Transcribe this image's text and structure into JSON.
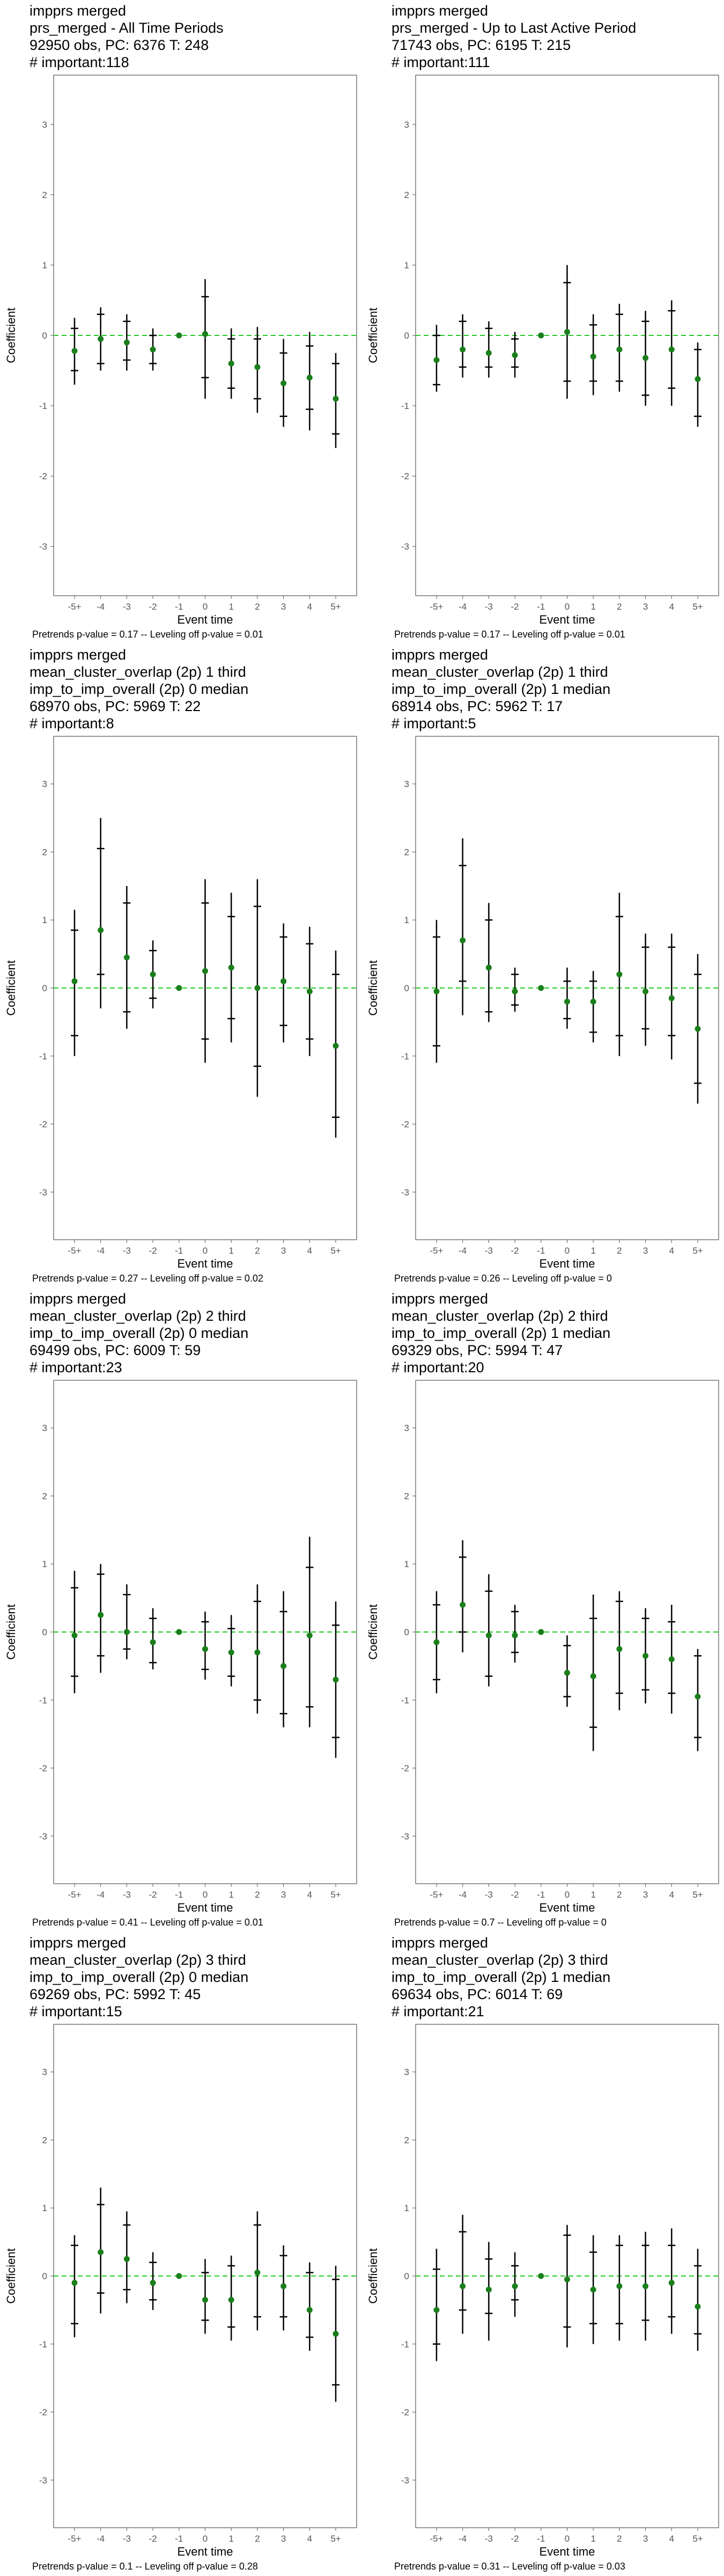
{
  "colors": {
    "zero_line": "#22cc22",
    "point": "#1a7f1a",
    "bar": "#000000",
    "frame": "#555555",
    "tick_text": "#555555"
  },
  "chart_data": [
    {
      "type": "scatter",
      "title_lines": [
        "impprs merged",
        "prs_merged - All Time Periods",
        "92950 obs, PC: 6376 T: 248",
        "# important:118"
      ],
      "caption": "Pretrends p-value = 0.17 -- Leveling off p-value = 0.01",
      "xlabel": "Event time",
      "ylabel": "Coefficient",
      "categories": [
        "-5+",
        "-4",
        "-3",
        "-2",
        "-1",
        "0",
        "1",
        "2",
        "3",
        "4",
        "5+"
      ],
      "y_ticks": [
        3,
        2,
        1,
        0,
        -1,
        -2,
        -3
      ],
      "ylim": [
        -3.7,
        3.7
      ],
      "points": [
        -0.22,
        -0.05,
        -0.1,
        -0.2,
        0.0,
        0.02,
        -0.4,
        -0.45,
        -0.68,
        -0.6,
        -0.9
      ],
      "ci_outer": [
        [
          -0.7,
          0.25
        ],
        [
          -0.5,
          0.4
        ],
        [
          -0.5,
          0.3
        ],
        [
          -0.5,
          0.1
        ],
        [
          0.0,
          0.0
        ],
        [
          -0.9,
          0.8
        ],
        [
          -0.9,
          0.1
        ],
        [
          -1.1,
          0.12
        ],
        [
          -1.3,
          -0.05
        ],
        [
          -1.35,
          0.05
        ],
        [
          -1.6,
          -0.25
        ]
      ],
      "ci_inner": [
        [
          -0.5,
          0.1
        ],
        [
          -0.4,
          0.3
        ],
        [
          -0.35,
          0.2
        ],
        [
          -0.4,
          0.0
        ],
        [
          0.0,
          0.0
        ],
        [
          -0.6,
          0.55
        ],
        [
          -0.75,
          -0.05
        ],
        [
          -0.9,
          -0.05
        ],
        [
          -1.15,
          -0.25
        ],
        [
          -1.05,
          -0.15
        ],
        [
          -1.4,
          -0.4
        ]
      ]
    },
    {
      "type": "scatter",
      "title_lines": [
        "impprs merged",
        "prs_merged - Up to Last Active Period",
        "71743 obs, PC: 6195 T: 215",
        "# important:111"
      ],
      "caption": "Pretrends p-value = 0.17 -- Leveling off p-value = 0.01",
      "xlabel": "Event time",
      "ylabel": "Coefficient",
      "categories": [
        "-5+",
        "-4",
        "-3",
        "-2",
        "-1",
        "0",
        "1",
        "2",
        "3",
        "4",
        "5+"
      ],
      "y_ticks": [
        3,
        2,
        1,
        0,
        -1,
        -2,
        -3
      ],
      "ylim": [
        -3.7,
        3.7
      ],
      "points": [
        -0.35,
        -0.2,
        -0.25,
        -0.28,
        0.0,
        0.05,
        -0.3,
        -0.2,
        -0.32,
        -0.2,
        -0.62
      ],
      "ci_outer": [
        [
          -0.8,
          0.15
        ],
        [
          -0.6,
          0.3
        ],
        [
          -0.6,
          0.2
        ],
        [
          -0.6,
          0.05
        ],
        [
          0.0,
          0.0
        ],
        [
          -0.9,
          1.0
        ],
        [
          -0.85,
          0.3
        ],
        [
          -0.8,
          0.45
        ],
        [
          -1.0,
          0.35
        ],
        [
          -1.0,
          0.5
        ],
        [
          -1.3,
          -0.1
        ]
      ],
      "ci_inner": [
        [
          -0.7,
          0.0
        ],
        [
          -0.45,
          0.2
        ],
        [
          -0.45,
          0.1
        ],
        [
          -0.45,
          -0.05
        ],
        [
          0.0,
          0.0
        ],
        [
          -0.65,
          0.75
        ],
        [
          -0.65,
          0.15
        ],
        [
          -0.65,
          0.3
        ],
        [
          -0.85,
          0.2
        ],
        [
          -0.75,
          0.35
        ],
        [
          -1.15,
          -0.2
        ]
      ]
    },
    {
      "type": "scatter",
      "title_lines": [
        "impprs merged",
        "mean_cluster_overlap (2p) 1 third",
        "imp_to_imp_overall (2p) 0 median",
        "68970 obs, PC: 5969 T: 22",
        "# important:8"
      ],
      "caption": "Pretrends p-value = 0.27 -- Leveling off p-value = 0.02",
      "xlabel": "Event time",
      "ylabel": "Coefficient",
      "categories": [
        "-5+",
        "-4",
        "-3",
        "-2",
        "-1",
        "0",
        "1",
        "2",
        "3",
        "4",
        "5+"
      ],
      "y_ticks": [
        3,
        2,
        1,
        0,
        -1,
        -2,
        -3
      ],
      "ylim": [
        -3.7,
        3.7
      ],
      "points": [
        0.1,
        0.85,
        0.45,
        0.2,
        0.0,
        0.25,
        0.3,
        0.0,
        0.1,
        -0.05,
        -0.85
      ],
      "ci_outer": [
        [
          -1.0,
          1.15
        ],
        [
          -0.3,
          2.5
        ],
        [
          -0.6,
          1.5
        ],
        [
          -0.3,
          0.7
        ],
        [
          0.0,
          0.0
        ],
        [
          -1.1,
          1.6
        ],
        [
          -0.8,
          1.4
        ],
        [
          -1.6,
          1.6
        ],
        [
          -0.8,
          0.95
        ],
        [
          -1.0,
          0.9
        ],
        [
          -2.2,
          0.55
        ]
      ],
      "ci_inner": [
        [
          -0.7,
          0.85
        ],
        [
          0.2,
          2.05
        ],
        [
          -0.35,
          1.25
        ],
        [
          -0.15,
          0.55
        ],
        [
          0.0,
          0.0
        ],
        [
          -0.75,
          1.25
        ],
        [
          -0.45,
          1.05
        ],
        [
          -1.15,
          1.2
        ],
        [
          -0.55,
          0.75
        ],
        [
          -0.75,
          0.65
        ],
        [
          -1.9,
          0.2
        ]
      ]
    },
    {
      "type": "scatter",
      "title_lines": [
        "impprs merged",
        "mean_cluster_overlap (2p) 1 third",
        "imp_to_imp_overall (2p) 1 median",
        "68914 obs, PC: 5962 T: 17",
        "# important:5"
      ],
      "caption": "Pretrends p-value = 0.26 -- Leveling off p-value = 0",
      "xlabel": "Event time",
      "ylabel": "Coefficient",
      "categories": [
        "-5+",
        "-4",
        "-3",
        "-2",
        "-1",
        "0",
        "1",
        "2",
        "3",
        "4",
        "5+"
      ],
      "y_ticks": [
        3,
        2,
        1,
        0,
        -1,
        -2,
        -3
      ],
      "ylim": [
        -3.7,
        3.7
      ],
      "points": [
        -0.05,
        0.7,
        0.3,
        -0.05,
        0.0,
        -0.2,
        -0.2,
        0.2,
        -0.05,
        -0.15,
        -0.6
      ],
      "ci_outer": [
        [
          -1.1,
          1.0
        ],
        [
          -0.4,
          2.2
        ],
        [
          -0.5,
          1.25
        ],
        [
          -0.35,
          0.3
        ],
        [
          0.0,
          0.0
        ],
        [
          -0.6,
          0.3
        ],
        [
          -0.8,
          0.25
        ],
        [
          -1.0,
          1.4
        ],
        [
          -0.85,
          0.8
        ],
        [
          -1.05,
          0.8
        ],
        [
          -1.7,
          0.5
        ]
      ],
      "ci_inner": [
        [
          -0.85,
          0.75
        ],
        [
          0.1,
          1.8
        ],
        [
          -0.35,
          1.0
        ],
        [
          -0.25,
          0.2
        ],
        [
          0.0,
          0.0
        ],
        [
          -0.45,
          0.1
        ],
        [
          -0.65,
          0.1
        ],
        [
          -0.7,
          1.05
        ],
        [
          -0.6,
          0.6
        ],
        [
          -0.7,
          0.6
        ],
        [
          -1.4,
          0.2
        ]
      ]
    },
    {
      "type": "scatter",
      "title_lines": [
        "impprs merged",
        "mean_cluster_overlap (2p) 2 third",
        "imp_to_imp_overall (2p) 0 median",
        "69499 obs, PC: 6009 T: 59",
        "# important:23"
      ],
      "caption": "Pretrends p-value = 0.41 -- Leveling off p-value = 0.01",
      "xlabel": "Event time",
      "ylabel": "Coefficient",
      "categories": [
        "-5+",
        "-4",
        "-3",
        "-2",
        "-1",
        "0",
        "1",
        "2",
        "3",
        "4",
        "5+"
      ],
      "y_ticks": [
        3,
        2,
        1,
        0,
        -1,
        -2,
        -3
      ],
      "ylim": [
        -3.7,
        3.7
      ],
      "points": [
        -0.05,
        0.25,
        0.0,
        -0.15,
        0.0,
        -0.25,
        -0.3,
        -0.3,
        -0.5,
        -0.05,
        -0.7
      ],
      "ci_outer": [
        [
          -0.9,
          0.9
        ],
        [
          -0.6,
          1.0
        ],
        [
          -0.4,
          0.7
        ],
        [
          -0.55,
          0.35
        ],
        [
          0.0,
          0.0
        ],
        [
          -0.7,
          0.3
        ],
        [
          -0.8,
          0.25
        ],
        [
          -1.2,
          0.7
        ],
        [
          -1.4,
          0.6
        ],
        [
          -1.4,
          1.4
        ],
        [
          -1.85,
          0.45
        ]
      ],
      "ci_inner": [
        [
          -0.65,
          0.65
        ],
        [
          -0.35,
          0.85
        ],
        [
          -0.25,
          0.55
        ],
        [
          -0.45,
          0.2
        ],
        [
          0.0,
          0.0
        ],
        [
          -0.55,
          0.15
        ],
        [
          -0.65,
          0.05
        ],
        [
          -1.0,
          0.45
        ],
        [
          -1.2,
          0.3
        ],
        [
          -1.1,
          0.95
        ],
        [
          -1.55,
          0.1
        ]
      ]
    },
    {
      "type": "scatter",
      "title_lines": [
        "impprs merged",
        "mean_cluster_overlap (2p) 2 third",
        "imp_to_imp_overall (2p) 1 median",
        "69329 obs, PC: 5994 T: 47",
        "# important:20"
      ],
      "caption": "Pretrends p-value = 0.7 -- Leveling off p-value = 0",
      "xlabel": "Event time",
      "ylabel": "Coefficient",
      "categories": [
        "-5+",
        "-4",
        "-3",
        "-2",
        "-1",
        "0",
        "1",
        "2",
        "3",
        "4",
        "5+"
      ],
      "y_ticks": [
        3,
        2,
        1,
        0,
        -1,
        -2,
        -3
      ],
      "ylim": [
        -3.7,
        3.7
      ],
      "points": [
        -0.15,
        0.4,
        -0.05,
        -0.05,
        0.0,
        -0.6,
        -0.65,
        -0.25,
        -0.35,
        -0.4,
        -0.95
      ],
      "ci_outer": [
        [
          -0.9,
          0.6
        ],
        [
          -0.3,
          1.35
        ],
        [
          -0.8,
          0.85
        ],
        [
          -0.45,
          0.4
        ],
        [
          0.0,
          0.0
        ],
        [
          -1.1,
          -0.05
        ],
        [
          -1.75,
          0.55
        ],
        [
          -1.15,
          0.6
        ],
        [
          -1.05,
          0.35
        ],
        [
          -1.2,
          0.4
        ],
        [
          -1.75,
          -0.25
        ]
      ],
      "ci_inner": [
        [
          -0.7,
          0.4
        ],
        [
          0.0,
          1.1
        ],
        [
          -0.65,
          0.6
        ],
        [
          -0.3,
          0.3
        ],
        [
          0.0,
          0.0
        ],
        [
          -0.95,
          -0.2
        ],
        [
          -1.4,
          0.2
        ],
        [
          -0.9,
          0.45
        ],
        [
          -0.85,
          0.2
        ],
        [
          -0.9,
          0.15
        ],
        [
          -1.55,
          -0.35
        ]
      ]
    },
    {
      "type": "scatter",
      "title_lines": [
        "impprs merged",
        "mean_cluster_overlap (2p) 3 third",
        "imp_to_imp_overall (2p) 0 median",
        "69269 obs, PC: 5992 T: 45",
        "# important:15"
      ],
      "caption": "Pretrends p-value = 0.1 -- Leveling off p-value = 0.28",
      "xlabel": "Event time",
      "ylabel": "Coefficient",
      "categories": [
        "-5+",
        "-4",
        "-3",
        "-2",
        "-1",
        "0",
        "1",
        "2",
        "3",
        "4",
        "5+"
      ],
      "y_ticks": [
        3,
        2,
        1,
        0,
        -1,
        -2,
        -3
      ],
      "ylim": [
        -3.7,
        3.7
      ],
      "points": [
        -0.1,
        0.35,
        0.25,
        -0.1,
        0.0,
        -0.35,
        -0.35,
        0.05,
        -0.15,
        -0.5,
        -0.85
      ],
      "ci_outer": [
        [
          -0.9,
          0.6
        ],
        [
          -0.55,
          1.3
        ],
        [
          -0.4,
          0.95
        ],
        [
          -0.5,
          0.35
        ],
        [
          0.0,
          0.0
        ],
        [
          -0.85,
          0.25
        ],
        [
          -0.95,
          0.3
        ],
        [
          -0.8,
          0.95
        ],
        [
          -0.8,
          0.45
        ],
        [
          -1.1,
          0.2
        ],
        [
          -1.85,
          0.15
        ]
      ],
      "ci_inner": [
        [
          -0.7,
          0.45
        ],
        [
          -0.25,
          1.05
        ],
        [
          -0.2,
          0.75
        ],
        [
          -0.35,
          0.2
        ],
        [
          0.0,
          0.0
        ],
        [
          -0.65,
          0.05
        ],
        [
          -0.75,
          0.15
        ],
        [
          -0.6,
          0.75
        ],
        [
          -0.6,
          0.3
        ],
        [
          -0.9,
          0.05
        ],
        [
          -1.6,
          -0.05
        ]
      ]
    },
    {
      "type": "scatter",
      "title_lines": [
        "impprs merged",
        "mean_cluster_overlap (2p) 3 third",
        "imp_to_imp_overall (2p) 1 median",
        "69634 obs, PC: 6014 T: 69",
        "# important:21"
      ],
      "caption": "Pretrends p-value = 0.31 -- Leveling off p-value = 0.03",
      "xlabel": "Event time",
      "ylabel": "Coefficient",
      "categories": [
        "-5+",
        "-4",
        "-3",
        "-2",
        "-1",
        "0",
        "1",
        "2",
        "3",
        "4",
        "5+"
      ],
      "y_ticks": [
        3,
        2,
        1,
        0,
        -1,
        -2,
        -3
      ],
      "ylim": [
        -3.7,
        3.7
      ],
      "points": [
        -0.5,
        -0.15,
        -0.2,
        -0.15,
        0.0,
        -0.05,
        -0.2,
        -0.15,
        -0.15,
        -0.1,
        -0.45
      ],
      "ci_outer": [
        [
          -1.25,
          0.4
        ],
        [
          -0.85,
          0.9
        ],
        [
          -0.95,
          0.5
        ],
        [
          -0.6,
          0.35
        ],
        [
          0.0,
          0.0
        ],
        [
          -1.05,
          0.75
        ],
        [
          -1.0,
          0.6
        ],
        [
          -0.95,
          0.6
        ],
        [
          -0.95,
          0.65
        ],
        [
          -0.85,
          0.7
        ],
        [
          -1.1,
          0.4
        ]
      ],
      "ci_inner": [
        [
          -1.0,
          0.1
        ],
        [
          -0.5,
          0.65
        ],
        [
          -0.55,
          0.25
        ],
        [
          -0.35,
          0.15
        ],
        [
          0.0,
          0.0
        ],
        [
          -0.75,
          0.6
        ],
        [
          -0.7,
          0.35
        ],
        [
          -0.7,
          0.45
        ],
        [
          -0.65,
          0.45
        ],
        [
          -0.6,
          0.45
        ],
        [
          -0.85,
          0.15
        ]
      ]
    }
  ]
}
